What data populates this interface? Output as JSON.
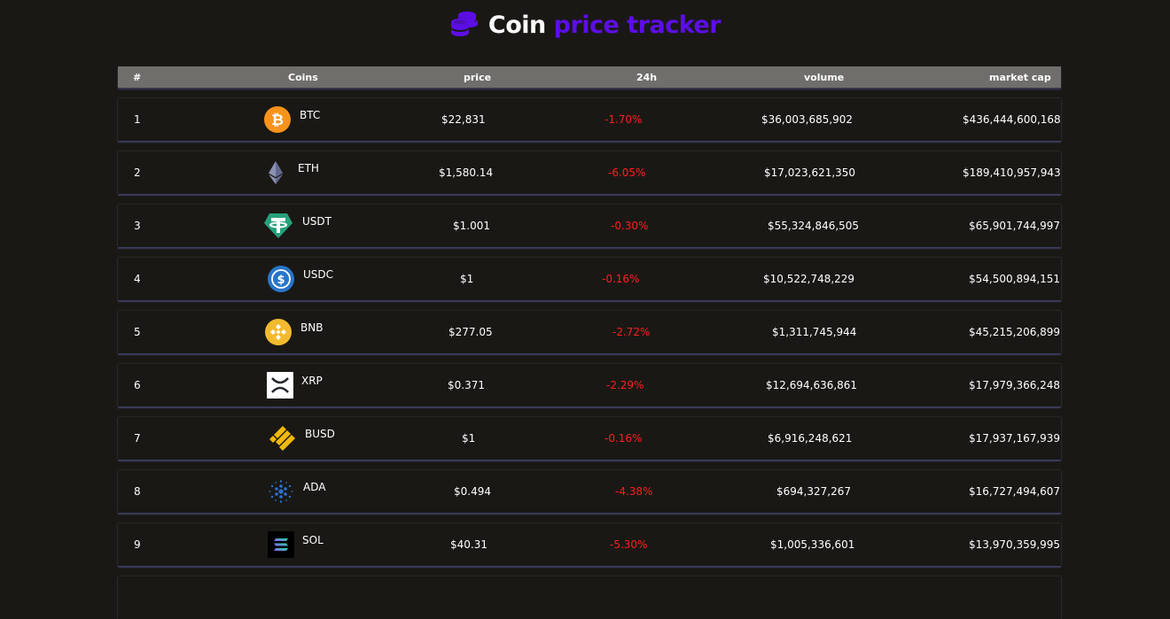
{
  "header": {
    "title_part1": "Coin",
    "title_part2": "price tracker"
  },
  "columns": {
    "rank": "#",
    "coins": "Coins",
    "price": "price",
    "change": "24h",
    "volume": "volume",
    "market_cap": "market cap"
  },
  "coins": [
    {
      "rank": "1",
      "symbol": "BTC",
      "icon": "bitcoin-icon",
      "price": "$22,831",
      "change": "-1.70%",
      "volume": "$36,003,685,902",
      "market_cap": "$436,444,600,168"
    },
    {
      "rank": "2",
      "symbol": "ETH",
      "icon": "ethereum-icon",
      "price": "$1,580.14",
      "change": "-6.05%",
      "volume": "$17,023,621,350",
      "market_cap": "$189,410,957,943"
    },
    {
      "rank": "3",
      "symbol": "USDT",
      "icon": "tether-icon",
      "price": "$1.001",
      "change": "-0.30%",
      "volume": "$55,324,846,505",
      "market_cap": "$65,901,744,997"
    },
    {
      "rank": "4",
      "symbol": "USDC",
      "icon": "usdc-icon",
      "price": "$1",
      "change": "-0.16%",
      "volume": "$10,522,748,229",
      "market_cap": "$54,500,894,151"
    },
    {
      "rank": "5",
      "symbol": "BNB",
      "icon": "bnb-icon",
      "price": "$277.05",
      "change": "-2.72%",
      "volume": "$1,311,745,944",
      "market_cap": "$45,215,206,899"
    },
    {
      "rank": "6",
      "symbol": "XRP",
      "icon": "xrp-icon",
      "price": "$0.371",
      "change": "-2.29%",
      "volume": "$12,694,636,861",
      "market_cap": "$17,979,366,248"
    },
    {
      "rank": "7",
      "symbol": "BUSD",
      "icon": "busd-icon",
      "price": "$1",
      "change": "-0.16%",
      "volume": "$6,916,248,621",
      "market_cap": "$17,937,167,939"
    },
    {
      "rank": "8",
      "symbol": "ADA",
      "icon": "cardano-icon",
      "price": "$0.494",
      "change": "-4.38%",
      "volume": "$694,327,267",
      "market_cap": "$16,727,494,607"
    },
    {
      "rank": "9",
      "symbol": "SOL",
      "icon": "solana-icon",
      "price": "$40.31",
      "change": "-5.30%",
      "volume": "$1,005,336,601",
      "market_cap": "$13,970,359,995"
    }
  ],
  "colors": {
    "background": "#1a1815",
    "accent": "#5c0ee6",
    "header_bg": "#6f6e6a",
    "negative": "#ff1e1e"
  }
}
